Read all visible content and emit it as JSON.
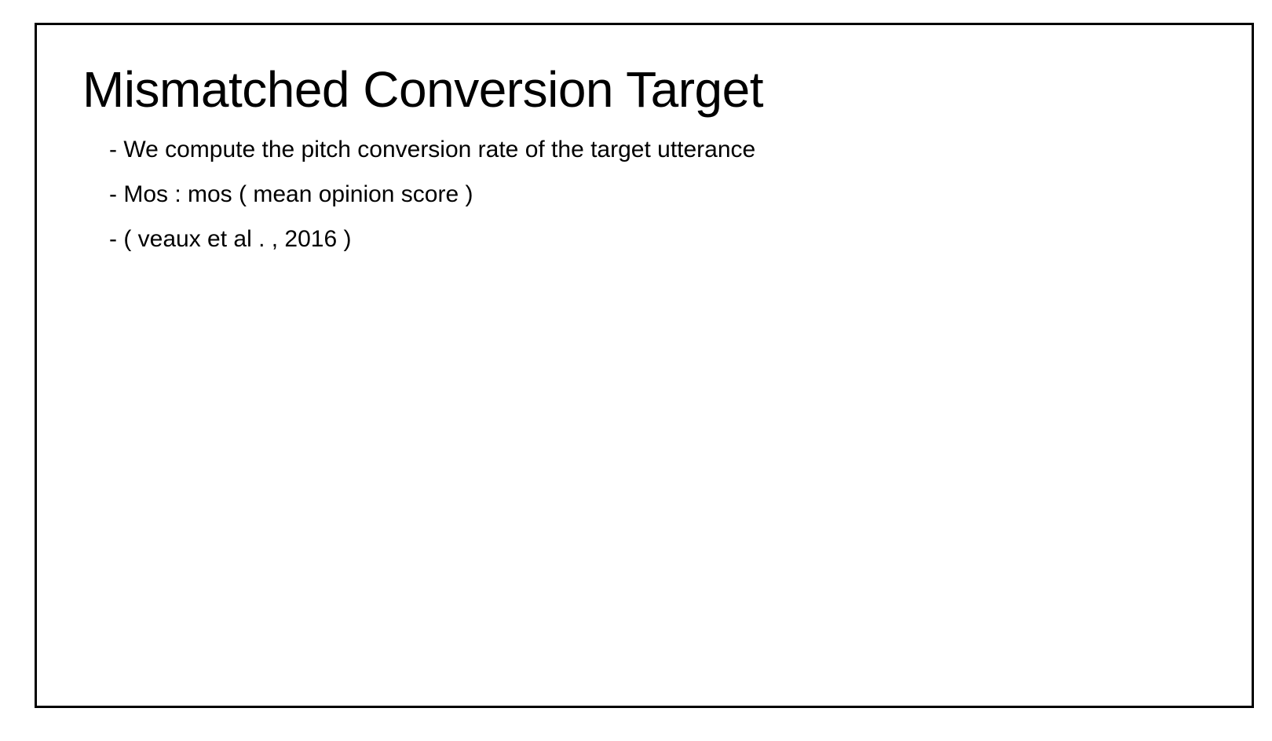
{
  "slide": {
    "title": "Mismatched Conversion Target",
    "bullets": [
      "- We compute the pitch conversion rate of the target utterance",
      "- Mos : mos ( mean opinion score )",
      "- ( veaux et al . , 2016 )"
    ]
  }
}
